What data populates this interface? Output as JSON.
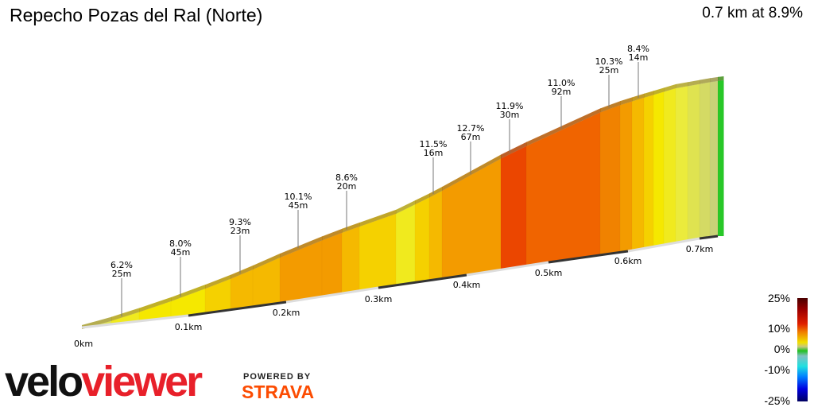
{
  "title": "Repecho Pozas del Ral (Norte)",
  "summary": "0.7 km at 8.9%",
  "chart_data": {
    "type": "area",
    "title": "Repecho Pozas del Ral (Norte)",
    "x_unit": "km",
    "x_ticks": [
      "0km",
      "0.1km",
      "0.2km",
      "0.3km",
      "0.4km",
      "0.5km",
      "0.6km",
      "0.7km"
    ],
    "segment_gradients_pct": [
      4,
      6,
      7,
      7,
      8,
      9,
      9,
      10,
      10,
      9,
      8,
      6,
      8,
      9,
      10,
      14,
      13,
      11,
      10,
      9,
      8,
      7,
      6,
      5,
      4,
      3,
      2,
      0
    ],
    "annotations": [
      {
        "grade": "6.2%",
        "length": "25m"
      },
      {
        "grade": "8.0%",
        "length": "45m"
      },
      {
        "grade": "9.3%",
        "length": "23m"
      },
      {
        "grade": "10.1%",
        "length": "45m"
      },
      {
        "grade": "8.6%",
        "length": "20m"
      },
      {
        "grade": "11.5%",
        "length": "16m"
      },
      {
        "grade": "12.7%",
        "length": "67m"
      },
      {
        "grade": "11.9%",
        "length": "30m"
      },
      {
        "grade": "11.0%",
        "length": "92m"
      },
      {
        "grade": "10.3%",
        "length": "25m"
      },
      {
        "grade": "8.4%",
        "length": "14m"
      }
    ],
    "legend": {
      "labels": [
        "25%",
        "10%",
        "0%",
        "-10%",
        "-25%"
      ]
    }
  },
  "branding": {
    "velo": "velo",
    "viewer": "viewer",
    "powered": "POWERED BY",
    "strava": "STRAVA"
  }
}
